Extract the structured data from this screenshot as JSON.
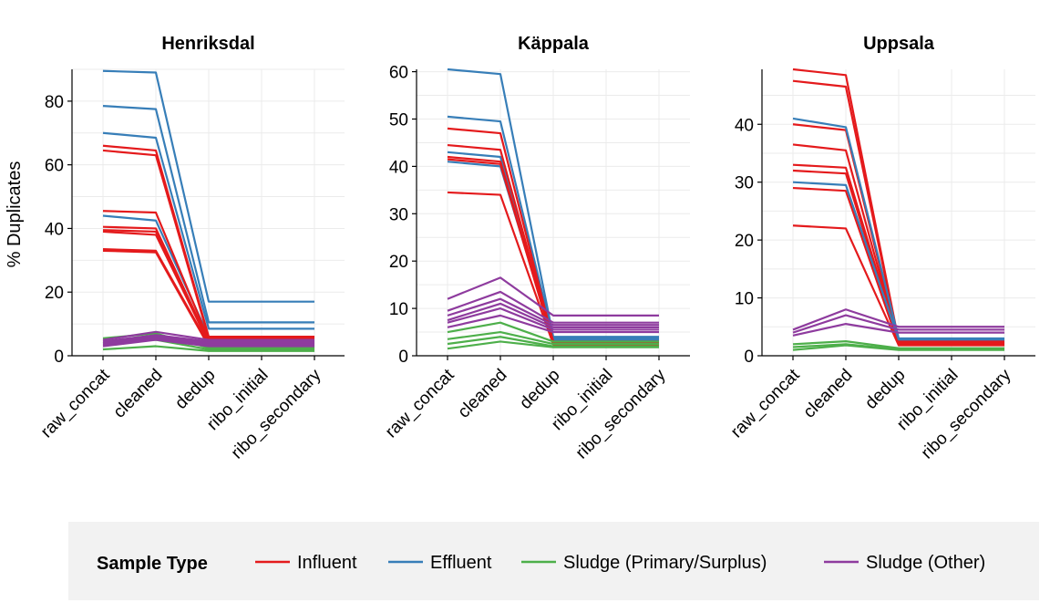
{
  "chart_data": {
    "type": "line",
    "ylabel": "% Duplicates",
    "x": [
      "raw_concat",
      "cleaned",
      "dedup",
      "ribo_initial",
      "ribo_secondary"
    ],
    "legend": {
      "title": "Sample Type",
      "position": "bottom",
      "entries": [
        {
          "name": "Influent",
          "color": "#e41a1c"
        },
        {
          "name": "Effluent",
          "color": "#377eb8"
        },
        {
          "name": "Sludge (Primary/Surplus)",
          "color": "#4daf4a"
        },
        {
          "name": "Sludge (Other)",
          "color": "#8e3b9e"
        }
      ]
    },
    "panels": [
      {
        "title": "Henriksdal",
        "ylim": [
          0,
          90
        ],
        "yticks": [
          0,
          20,
          40,
          60,
          80
        ],
        "series": [
          {
            "type": "Effluent",
            "values": [
              89.5,
              89,
              17,
              17,
              17
            ]
          },
          {
            "type": "Effluent",
            "values": [
              78.5,
              77.5,
              10.5,
              10.5,
              10.5
            ]
          },
          {
            "type": "Effluent",
            "values": [
              70,
              68.5,
              8.5,
              8.5,
              8.5
            ]
          },
          {
            "type": "Effluent",
            "values": [
              44,
              42.5,
              6,
              6,
              6
            ]
          },
          {
            "type": "Influent",
            "values": [
              66,
              64.5,
              6,
              6,
              6
            ]
          },
          {
            "type": "Influent",
            "values": [
              64.5,
              63,
              5.5,
              5.5,
              5.5
            ]
          },
          {
            "type": "Influent",
            "values": [
              45.5,
              45,
              5,
              5,
              5
            ]
          },
          {
            "type": "Influent",
            "values": [
              40.5,
              40,
              4.5,
              4.5,
              4.5
            ]
          },
          {
            "type": "Influent",
            "values": [
              39.5,
              39,
              4,
              4,
              4
            ]
          },
          {
            "type": "Influent",
            "values": [
              39,
              38,
              4,
              4,
              4
            ]
          },
          {
            "type": "Influent",
            "values": [
              33.5,
              33,
              3.5,
              3.5,
              3.5
            ]
          },
          {
            "type": "Influent",
            "values": [
              33,
              32.5,
              3,
              3,
              3
            ]
          },
          {
            "type": "Sludge (Primary/Surplus)",
            "values": [
              5.5,
              7,
              2.5,
              2.5,
              2.5
            ]
          },
          {
            "type": "Sludge (Primary/Surplus)",
            "values": [
              4,
              5,
              2,
              2,
              2
            ]
          },
          {
            "type": "Sludge (Primary/Surplus)",
            "values": [
              2,
              3,
              1.5,
              1.5,
              1.5
            ]
          },
          {
            "type": "Sludge (Other)",
            "values": [
              5,
              7.5,
              5,
              5,
              5
            ]
          },
          {
            "type": "Sludge (Other)",
            "values": [
              4.5,
              6.5,
              4.5,
              4.5,
              4.5
            ]
          },
          {
            "type": "Sludge (Other)",
            "values": [
              4,
              6,
              4,
              4,
              4
            ]
          },
          {
            "type": "Sludge (Other)",
            "values": [
              3.5,
              5.5,
              3.5,
              3.5,
              3.5
            ]
          },
          {
            "type": "Sludge (Other)",
            "values": [
              3,
              5,
              3,
              3,
              3
            ]
          }
        ]
      },
      {
        "title": "Käppala",
        "ylim": [
          0,
          60.5
        ],
        "yticks": [
          0,
          10,
          20,
          30,
          40,
          50,
          60
        ],
        "series": [
          {
            "type": "Effluent",
            "values": [
              60.5,
              59.5,
              4,
              4,
              4
            ]
          },
          {
            "type": "Effluent",
            "values": [
              50.5,
              49.5,
              3.8,
              3.8,
              3.8
            ]
          },
          {
            "type": "Effluent",
            "values": [
              43,
              42,
              3.5,
              3.5,
              3.5
            ]
          },
          {
            "type": "Effluent",
            "values": [
              41,
              40,
              3.2,
              3.2,
              3.2
            ]
          },
          {
            "type": "Influent",
            "values": [
              48,
              47,
              3,
              3,
              3
            ]
          },
          {
            "type": "Influent",
            "values": [
              44.5,
              43.5,
              2.8,
              2.8,
              2.8
            ]
          },
          {
            "type": "Influent",
            "values": [
              42,
              41,
              2.6,
              2.6,
              2.6
            ]
          },
          {
            "type": "Influent",
            "values": [
              41.5,
              40.5,
              2.5,
              2.5,
              2.5
            ]
          },
          {
            "type": "Influent",
            "values": [
              34.5,
              34,
              2.4,
              2.4,
              2.4
            ]
          },
          {
            "type": "Sludge (Primary/Surplus)",
            "values": [
              5,
              7,
              3,
              3,
              3
            ]
          },
          {
            "type": "Sludge (Primary/Surplus)",
            "values": [
              3.5,
              5,
              2.5,
              2.5,
              2.5
            ]
          },
          {
            "type": "Sludge (Primary/Surplus)",
            "values": [
              2.5,
              4,
              2,
              2,
              2
            ]
          },
          {
            "type": "Sludge (Primary/Surplus)",
            "values": [
              1.5,
              3,
              1.8,
              1.8,
              1.8
            ]
          },
          {
            "type": "Sludge (Other)",
            "values": [
              12,
              16.5,
              8.5,
              8.5,
              8.5
            ]
          },
          {
            "type": "Sludge (Other)",
            "values": [
              9.5,
              13.5,
              7,
              7,
              7
            ]
          },
          {
            "type": "Sludge (Other)",
            "values": [
              8.5,
              12,
              6.5,
              6.5,
              6.5
            ]
          },
          {
            "type": "Sludge (Other)",
            "values": [
              7.5,
              11,
              6,
              6,
              6
            ]
          },
          {
            "type": "Sludge (Other)",
            "values": [
              7,
              10,
              5.5,
              5.5,
              5.5
            ]
          },
          {
            "type": "Sludge (Other)",
            "values": [
              6,
              8.5,
              5,
              5,
              5
            ]
          }
        ]
      },
      {
        "title": "Uppsala",
        "ylim": [
          0,
          49.5
        ],
        "yticks": [
          0,
          10,
          20,
          30,
          40
        ],
        "series": [
          {
            "type": "Influent",
            "values": [
              49.5,
              48.5,
              2.5,
              2.5,
              2.5
            ]
          },
          {
            "type": "Influent",
            "values": [
              47.5,
              46.5,
              2.4,
              2.4,
              2.4
            ]
          },
          {
            "type": "Influent",
            "values": [
              40,
              39,
              2.3,
              2.3,
              2.3
            ]
          },
          {
            "type": "Influent",
            "values": [
              36.5,
              35.5,
              2.2,
              2.2,
              2.2
            ]
          },
          {
            "type": "Influent",
            "values": [
              33,
              32.5,
              2.1,
              2.1,
              2.1
            ]
          },
          {
            "type": "Influent",
            "values": [
              32,
              31.5,
              2,
              2,
              2
            ]
          },
          {
            "type": "Influent",
            "values": [
              29,
              28.5,
              1.9,
              1.9,
              1.9
            ]
          },
          {
            "type": "Influent",
            "values": [
              22.5,
              22,
              1.8,
              1.8,
              1.8
            ]
          },
          {
            "type": "Effluent",
            "values": [
              41,
              39.5,
              3,
              3,
              3
            ]
          },
          {
            "type": "Effluent",
            "values": [
              30,
              29.5,
              2.8,
              2.8,
              2.8
            ]
          },
          {
            "type": "Sludge (Primary/Surplus)",
            "values": [
              2,
              2.5,
              1.3,
              1.3,
              1.3
            ]
          },
          {
            "type": "Sludge (Primary/Surplus)",
            "values": [
              1.5,
              2,
              1.1,
              1.1,
              1.1
            ]
          },
          {
            "type": "Sludge (Primary/Surplus)",
            "values": [
              1,
              1.8,
              1,
              1,
              1
            ]
          },
          {
            "type": "Sludge (Other)",
            "values": [
              4.5,
              8,
              5,
              5,
              5
            ]
          },
          {
            "type": "Sludge (Other)",
            "values": [
              4,
              7,
              4.5,
              4.5,
              4.5
            ]
          },
          {
            "type": "Sludge (Other)",
            "values": [
              3.5,
              5.5,
              4,
              4,
              4
            ]
          }
        ]
      }
    ]
  }
}
